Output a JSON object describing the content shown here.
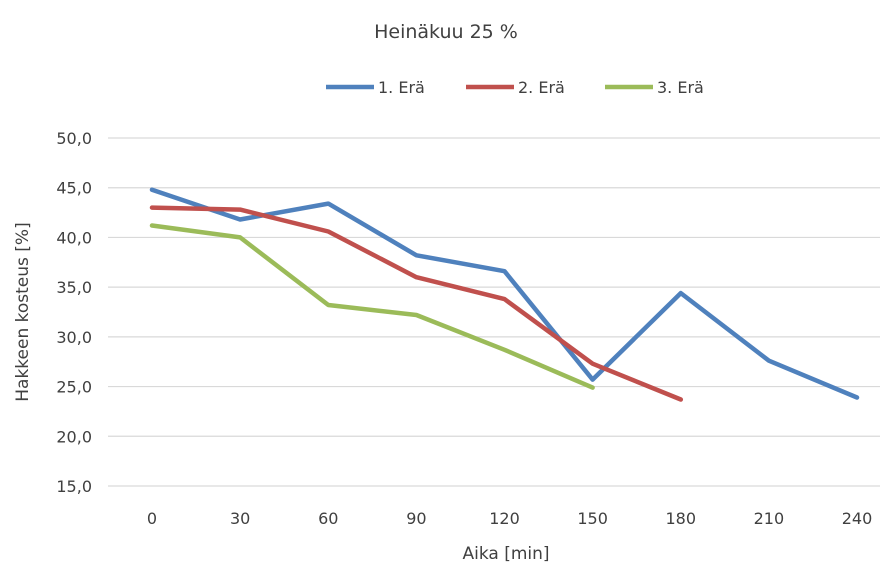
{
  "chart_data": {
    "type": "line",
    "title": "Heinäkuu 25 %",
    "xlabel": "Aika [min]",
    "ylabel": "Hakkeen kosteus [%]",
    "x": [
      0,
      30,
      60,
      90,
      120,
      150,
      180,
      210,
      240
    ],
    "x_tick_labels": [
      "0",
      "30",
      "60",
      "90",
      "120",
      "150",
      "180",
      "210",
      "240"
    ],
    "ylim": [
      15,
      50
    ],
    "y_tick_labels": [
      "15,0",
      "20,0",
      "25,0",
      "30,0",
      "35,0",
      "40,0",
      "45,0",
      "50,0"
    ],
    "y_ticks": [
      15,
      20,
      25,
      30,
      35,
      40,
      45,
      50
    ],
    "grid": true,
    "legend_position": "top",
    "series": [
      {
        "name": "1. Erä",
        "color": "#4F81BD",
        "values": [
          44.8,
          41.8,
          43.4,
          38.2,
          36.6,
          25.7,
          34.4,
          27.6,
          23.9
        ]
      },
      {
        "name": "2. Erä",
        "color": "#C0504D",
        "values": [
          43.0,
          42.8,
          40.6,
          36.0,
          33.8,
          27.3,
          23.7,
          null,
          null
        ]
      },
      {
        "name": "3. Erä",
        "color": "#9BBB59",
        "values": [
          41.2,
          40.0,
          33.2,
          32.2,
          28.7,
          24.9,
          null,
          null,
          null
        ]
      }
    ]
  }
}
